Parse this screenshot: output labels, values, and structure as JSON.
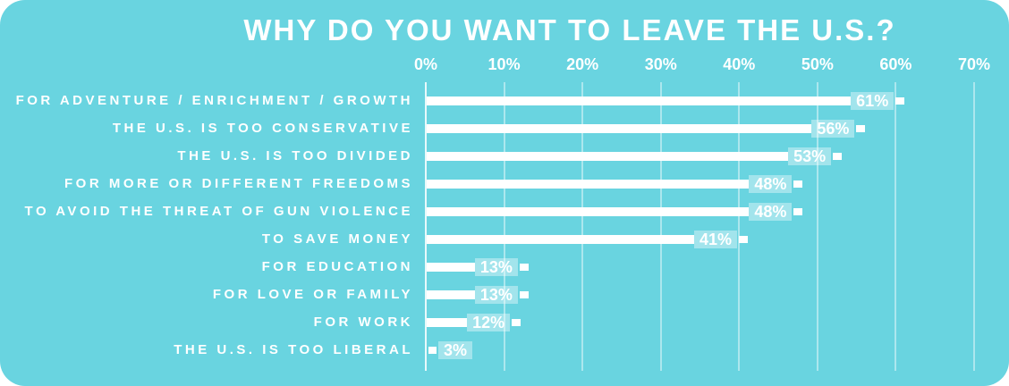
{
  "title": "WHY DO YOU WANT TO LEAVE THE U.S.?",
  "colors": {
    "background": "#69d4e0",
    "bar": "#ffffff",
    "text": "#ffffff",
    "value_label_box": "rgba(255,255,255,0.38)",
    "gridline": "rgba(255,255,255,0.45)",
    "axis_line": "rgba(255,255,255,0.85)"
  },
  "chart_data": {
    "type": "bar",
    "orientation": "horizontal",
    "title": "WHY DO YOU WANT TO LEAVE THE U.S.?",
    "categories": [
      "FOR ADVENTURE / ENRICHMENT / GROWTH",
      "THE U.S. IS TOO CONSERVATIVE",
      "THE U.S. IS TOO DIVIDED",
      "FOR MORE OR DIFFERENT FREEDOMS",
      "TO AVOID THE THREAT OF GUN VIOLENCE",
      "TO SAVE MONEY",
      "FOR EDUCATION",
      "FOR LOVE OR FAMILY",
      "FOR WORK",
      "THE U.S. IS TOO LIBERAL"
    ],
    "values": [
      61,
      56,
      53,
      48,
      48,
      41,
      13,
      13,
      12,
      3
    ],
    "value_labels": [
      "61%",
      "56%",
      "53%",
      "48%",
      "48%",
      "41%",
      "13%",
      "13%",
      "12%",
      "3%"
    ],
    "x_ticks": [
      "0%",
      "10%",
      "20%",
      "30%",
      "40%",
      "50%",
      "60%",
      "70%"
    ],
    "x_tick_values": [
      0,
      10,
      20,
      30,
      40,
      50,
      60,
      70
    ],
    "xlim": [
      0,
      70
    ],
    "unit": "%",
    "grid": true,
    "legend": false,
    "xlabel": "",
    "ylabel": ""
  }
}
